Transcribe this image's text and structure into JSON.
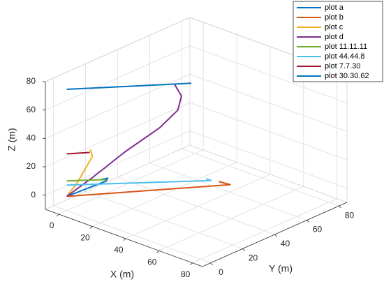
{
  "chart_data": {
    "type": "line3d",
    "xlabel": "X (m)",
    "ylabel": "Y (m)",
    "zlabel": "Z (m)",
    "xlim": [
      -8,
      86
    ],
    "ylim": [
      -5,
      85
    ],
    "zlim": [
      -10,
      80
    ],
    "xticks": [
      0,
      20,
      40,
      60,
      80
    ],
    "yticks": [
      0,
      20,
      40,
      60,
      80
    ],
    "zticks": [
      0,
      20,
      40,
      60,
      80
    ],
    "grid": true,
    "legend_position": "northeast",
    "series": [
      {
        "name": "plot a",
        "color": "#0072BD",
        "x": [
          0,
          6,
          12,
          12.5,
          10
        ],
        "y": [
          0,
          6,
          12,
          12.5,
          10
        ],
        "z": [
          0,
          5,
          10,
          12,
          11
        ]
      },
      {
        "name": "plot b",
        "color": "#D95319",
        "x": [
          0,
          45,
          41
        ],
        "y": [
          0,
          55,
          52
        ],
        "z": [
          0,
          0,
          2
        ]
      },
      {
        "name": "plot c",
        "color": "#EDB120",
        "x": [
          0,
          3.3,
          6,
          7.8,
          7.2
        ],
        "y": [
          0,
          3.3,
          6,
          7.8,
          7.2
        ],
        "z": [
          0,
          9.8,
          20.5,
          27.7,
          32.7
        ]
      },
      {
        "name": "plot d",
        "color": "#7E2F8E",
        "x": [
          0,
          8,
          17.5,
          28.4,
          33.9,
          35,
          32.8
        ],
        "y": [
          0,
          8,
          17.5,
          28.4,
          33.9,
          35,
          32.8
        ],
        "z": [
          0,
          13,
          29.7,
          46.4,
          58.4,
          68.2,
          77
        ]
      },
      {
        "name": "plot 11.11.11",
        "color": "#77AC30",
        "x": [
          0,
          12
        ],
        "y": [
          0,
          12
        ],
        "z": [
          11,
          11
        ]
      },
      {
        "name": "plot 44.44.8",
        "color": "#4DBEEE",
        "x": [
          0,
          44,
          42
        ],
        "y": [
          0,
          44,
          43
        ],
        "z": [
          8,
          8,
          9
        ]
      },
      {
        "name": "plot 7.7.30",
        "color": "#A2142F",
        "x": [
          0,
          7
        ],
        "y": [
          0,
          7
        ],
        "z": [
          30,
          30.5
        ]
      },
      {
        "name": "plot 30.30.62",
        "color": "#0072BD",
        "x": [
          0,
          38
        ],
        "y": [
          0,
          38
        ],
        "z": [
          75.5,
          77
        ]
      }
    ]
  }
}
